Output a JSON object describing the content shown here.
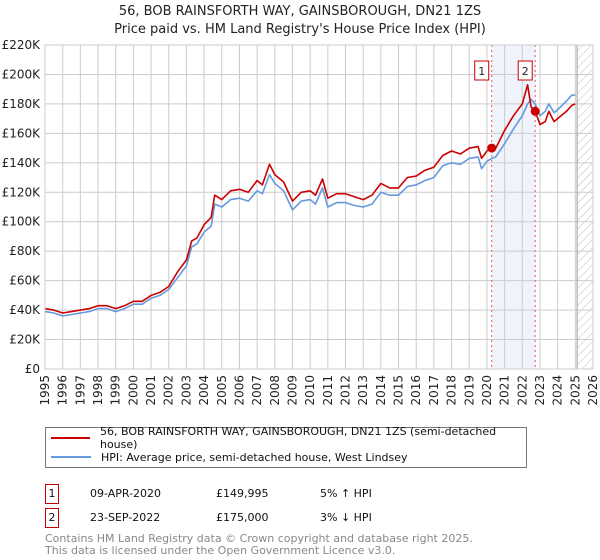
{
  "title": "56, BOB RAINSFORTH WAY, GAINSBOROUGH, DN21 1ZS",
  "subtitle": "Price paid vs. HM Land Registry's House Price Index (HPI)",
  "colors": {
    "property": "#cc0000",
    "hpi": "#6699dd",
    "shade": "#eef3fc"
  },
  "chart_data": {
    "type": "line",
    "title": "56, BOB RAINSFORTH WAY, GAINSBOROUGH, DN21 1ZS",
    "subtitle": "Price paid vs. HM Land Registry's House Price Index (HPI)",
    "xlim": [
      1995,
      2026
    ],
    "ylim": [
      0,
      220000
    ],
    "x_ticks": [
      "1995",
      "1996",
      "1997",
      "1998",
      "1999",
      "2000",
      "2001",
      "2002",
      "2003",
      "2004",
      "2005",
      "2006",
      "2007",
      "2008",
      "2009",
      "2010",
      "2011",
      "2012",
      "2013",
      "2014",
      "2015",
      "2016",
      "2017",
      "2018",
      "2019",
      "2020",
      "2021",
      "2022",
      "2023",
      "2024",
      "2025",
      "2026"
    ],
    "y_ticks": [
      {
        "v": 0,
        "label": "£0"
      },
      {
        "v": 20000,
        "label": "£20K"
      },
      {
        "v": 40000,
        "label": "£40K"
      },
      {
        "v": 60000,
        "label": "£60K"
      },
      {
        "v": 80000,
        "label": "£80K"
      },
      {
        "v": 100000,
        "label": "£100K"
      },
      {
        "v": 120000,
        "label": "£120K"
      },
      {
        "v": 140000,
        "label": "£140K"
      },
      {
        "v": 160000,
        "label": "£160K"
      },
      {
        "v": 180000,
        "label": "£180K"
      },
      {
        "v": 200000,
        "label": "£200K"
      },
      {
        "v": 220000,
        "label": "£220K"
      }
    ],
    "grid": true,
    "shaded_range": [
      2020.27,
      2022.73
    ],
    "forecast_hatch_from": 2025.1,
    "series": [
      {
        "name": "56, BOB RAINSFORTH WAY, GAINSBOROUGH, DN21 1ZS (semi-detached house)",
        "x": [
          1995,
          1995.5,
          1996,
          1996.5,
          1997,
          1997.5,
          1998,
          1998.5,
          1999,
          1999.5,
          2000,
          2000.5,
          2001,
          2001.5,
          2002,
          2002.5,
          2003,
          2003.3,
          2003.6,
          2004,
          2004.4,
          2004.6,
          2005,
          2005.5,
          2006,
          2006.5,
          2007,
          2007.3,
          2007.7,
          2008,
          2008.5,
          2009,
          2009.5,
          2010,
          2010.3,
          2010.7,
          2011,
          2011.5,
          2012,
          2012.5,
          2013,
          2013.5,
          2014,
          2014.5,
          2015,
          2015.5,
          2016,
          2016.5,
          2017,
          2017.5,
          2018,
          2018.5,
          2019,
          2019.5,
          2019.7,
          2020,
          2020.27,
          2020.5,
          2021,
          2021.5,
          2022,
          2022.3,
          2022.5,
          2022.73,
          2023,
          2023.3,
          2023.5,
          2023.8,
          2024,
          2024.5,
          2024.8,
          2025
        ],
        "values": [
          41000,
          40000,
          38000,
          39000,
          40000,
          41000,
          43000,
          43000,
          41000,
          43000,
          46000,
          46000,
          50000,
          52000,
          56000,
          66000,
          74000,
          87000,
          89000,
          98000,
          103000,
          118000,
          115000,
          121000,
          122000,
          120000,
          128000,
          125000,
          139000,
          132000,
          127000,
          114000,
          120000,
          121000,
          118000,
          129000,
          116000,
          119000,
          119000,
          117000,
          115000,
          118000,
          126000,
          123000,
          123000,
          130000,
          131000,
          135000,
          137000,
          145000,
          148000,
          146000,
          150000,
          151000,
          143000,
          148000,
          149995,
          150000,
          162000,
          172000,
          180000,
          193000,
          178000,
          175000,
          166000,
          168000,
          175000,
          168000,
          170000,
          175000,
          179000,
          180000
        ]
      },
      {
        "name": "HPI: Average price, semi-detached house, West Lindsey",
        "x": [
          1995,
          1995.5,
          1996,
          1996.5,
          1997,
          1997.5,
          1998,
          1998.5,
          1999,
          1999.5,
          2000,
          2000.5,
          2001,
          2001.5,
          2002,
          2002.5,
          2003,
          2003.3,
          2003.6,
          2004,
          2004.4,
          2004.6,
          2005,
          2005.5,
          2006,
          2006.5,
          2007,
          2007.3,
          2007.7,
          2008,
          2008.5,
          2009,
          2009.5,
          2010,
          2010.3,
          2010.7,
          2011,
          2011.5,
          2012,
          2012.5,
          2013,
          2013.5,
          2014,
          2014.5,
          2015,
          2015.5,
          2016,
          2016.5,
          2017,
          2017.5,
          2018,
          2018.5,
          2019,
          2019.5,
          2019.7,
          2020,
          2020.27,
          2020.5,
          2021,
          2021.5,
          2022,
          2022.3,
          2022.5,
          2022.73,
          2023,
          2023.3,
          2023.5,
          2023.8,
          2024,
          2024.5,
          2024.8,
          2025
        ],
        "values": [
          39000,
          38000,
          36000,
          37000,
          38000,
          39000,
          41000,
          41000,
          39000,
          41000,
          44000,
          44000,
          48000,
          50000,
          54000,
          62000,
          70000,
          83000,
          85000,
          93000,
          97000,
          112000,
          110000,
          115000,
          116000,
          114000,
          121000,
          119000,
          132000,
          126000,
          121000,
          108000,
          114000,
          115000,
          112000,
          123000,
          110000,
          113000,
          113000,
          111000,
          110000,
          112000,
          120000,
          118000,
          118000,
          124000,
          125000,
          128000,
          130000,
          138000,
          140000,
          139000,
          143000,
          144000,
          136000,
          141000,
          143000,
          144000,
          153000,
          163000,
          172000,
          180000,
          183000,
          180000,
          172000,
          175000,
          180000,
          174000,
          176000,
          182000,
          186000,
          186000
        ]
      }
    ],
    "sales": [
      {
        "id": "1",
        "x": 2020.27,
        "value": 149995
      },
      {
        "id": "2",
        "x": 2022.73,
        "value": 175000
      }
    ]
  },
  "legend": {
    "property_label": "56, BOB RAINSFORTH WAY, GAINSBOROUGH, DN21 1ZS (semi-detached house)",
    "hpi_label": "HPI: Average price, semi-detached house, West Lindsey"
  },
  "transactions": [
    {
      "num": "1",
      "date": "09-APR-2020",
      "price": "£149,995",
      "hpi": "5% ↑ HPI"
    },
    {
      "num": "2",
      "date": "23-SEP-2022",
      "price": "£175,000",
      "hpi": "3% ↓ HPI"
    }
  ],
  "footer": {
    "line1": "Contains HM Land Registry data © Crown copyright and database right 2025.",
    "line2": "This data is licensed under the Open Government Licence v3.0."
  }
}
